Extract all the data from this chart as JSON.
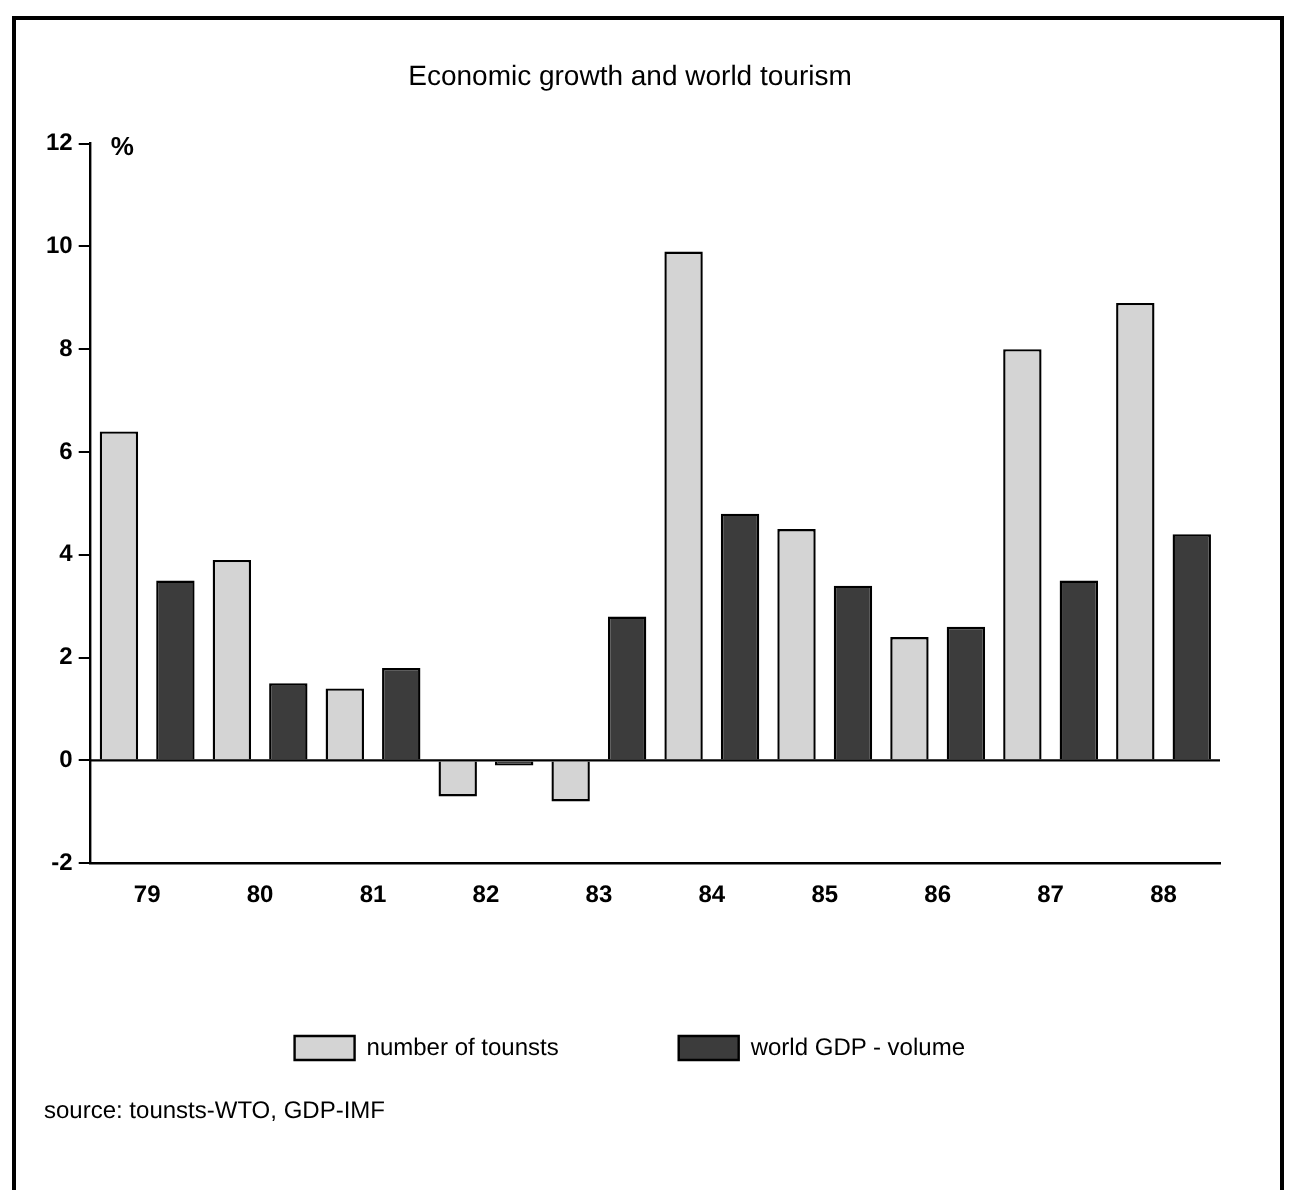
{
  "chart_data": {
    "type": "bar",
    "title": "Economic growth and world tourism",
    "ylabel": "%",
    "categories": [
      "79",
      "80",
      "81",
      "82",
      "83",
      "84",
      "85",
      "86",
      "87",
      "88"
    ],
    "series": [
      {
        "name": "number of tounsts",
        "color": "#d4d4d4",
        "values": [
          6.4,
          3.9,
          1.4,
          -0.7,
          -0.8,
          9.9,
          4.5,
          2.4,
          8.0,
          8.9
        ]
      },
      {
        "name": "world GDP - volume",
        "color": "#3c3c3c",
        "values": [
          3.5,
          1.5,
          1.8,
          -0.1,
          2.8,
          4.8,
          3.4,
          2.6,
          3.5,
          4.4
        ]
      }
    ],
    "ylim": [
      -2,
      12
    ],
    "yticks": [
      -2,
      0,
      2,
      4,
      6,
      8,
      10,
      12
    ],
    "grid": false,
    "legend": "bottom",
    "ref_lines": [
      {
        "axis": "y",
        "value": 0,
        "color": "#000000"
      }
    ],
    "annotations": [
      "source: tounsts-WTO, GDP-IMF"
    ]
  }
}
